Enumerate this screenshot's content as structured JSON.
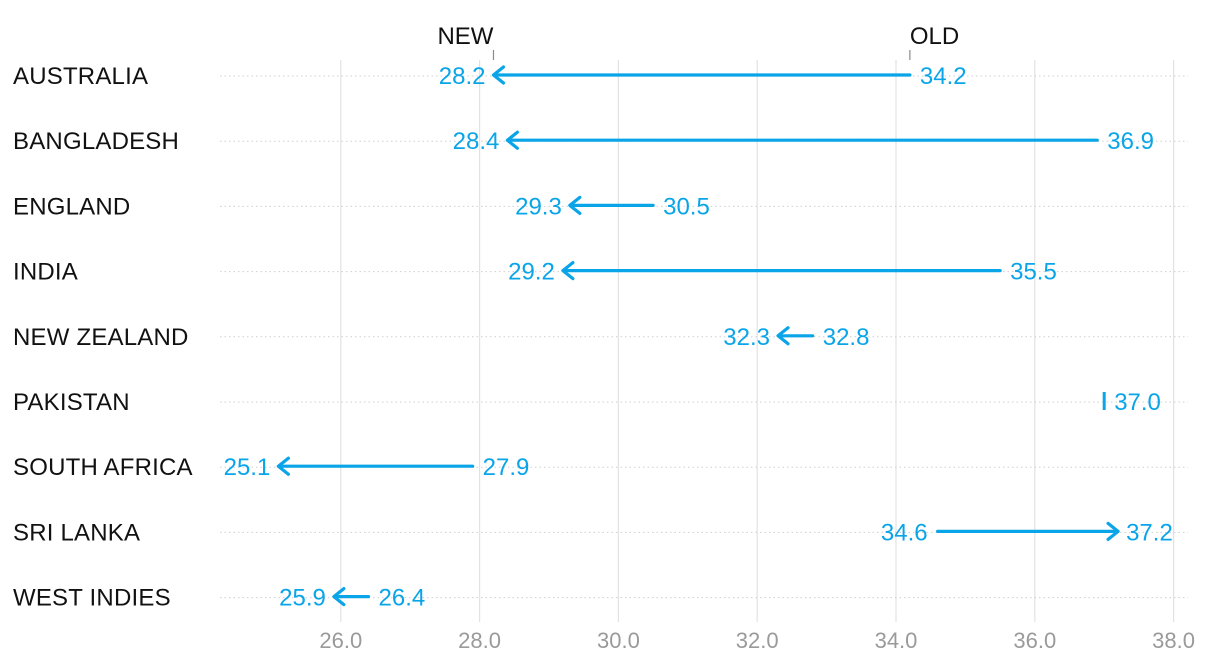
{
  "chart_data": {
    "type": "arrow-dumbbell",
    "markers": {
      "new": "NEW",
      "old": "OLD"
    },
    "categories": [
      "AUSTRALIA",
      "BANGLADESH",
      "ENGLAND",
      "INDIA",
      "NEW ZEALAND",
      "PAKISTAN",
      "SOUTH AFRICA",
      "SRI LANKA",
      "WEST INDIES"
    ],
    "old": [
      34.2,
      36.9,
      30.5,
      35.5,
      32.8,
      37.0,
      27.9,
      34.6,
      26.4
    ],
    "new": [
      28.2,
      28.4,
      29.3,
      29.2,
      32.3,
      37.0,
      25.1,
      37.2,
      25.9
    ],
    "x_ticks": [
      "26.0",
      "28.0",
      "30.0",
      "32.0",
      "34.0",
      "36.0",
      "38.0"
    ],
    "xlim": [
      24.0,
      38.0
    ],
    "grid": true,
    "colors": {
      "series": "#0aa5e8",
      "grid": "#e2e2e2",
      "row_line": "#cfcfcf",
      "tick": "#9a9a9a",
      "text": "#111111"
    }
  }
}
